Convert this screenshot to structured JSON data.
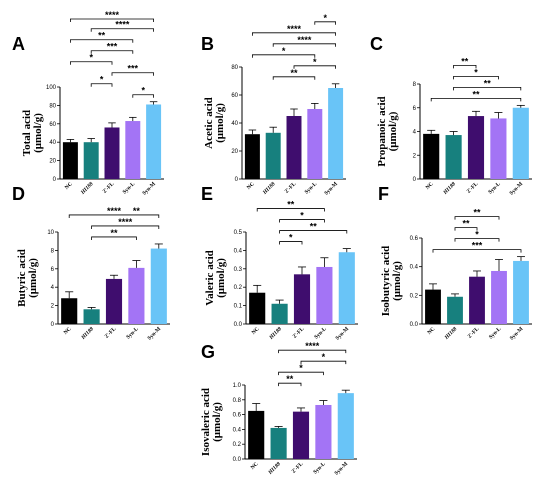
{
  "colors": {
    "NC": "#000000",
    "HI188": "#17807e",
    "2'-FL": "#3f0d6e",
    "Syn-L": "#a374f5",
    "Syn-M": "#69c4f7"
  },
  "chart_data": [
    {
      "panel": "A",
      "type": "bar",
      "ylabel_line1": "Total acid",
      "ylabel_line2": "(μmol/g)",
      "categories": [
        "NC",
        "HI188",
        "2'-FL",
        "Syn-L",
        "Syn-M"
      ],
      "values": [
        40,
        40,
        56,
        63,
        81
      ],
      "errors": [
        3,
        4,
        5,
        4,
        3
      ],
      "ylim": [
        0,
        100
      ],
      "yticks": [
        "0",
        "20",
        "40",
        "60",
        "80",
        "100"
      ],
      "brackets": [
        {
          "from": 0,
          "to": 4,
          "label": "****"
        },
        {
          "from": 1,
          "to": 4,
          "label": "****"
        },
        {
          "from": 0,
          "to": 3,
          "label": "**"
        },
        {
          "from": 1,
          "to": 3,
          "label": "***"
        },
        {
          "from": 0,
          "to": 2,
          "label": "*"
        },
        {
          "from": 2,
          "to": 4,
          "label": "***"
        },
        {
          "from": 1,
          "to": 2,
          "label": "*"
        },
        {
          "from": 3,
          "to": 4,
          "label": "*"
        }
      ]
    },
    {
      "panel": "B",
      "type": "bar",
      "ylabel_line1": "Acetic acid",
      "ylabel_line2": "(μmol/g)",
      "categories": [
        "NC",
        "HI188",
        "2'-FL",
        "Syn-L",
        "Syn-M"
      ],
      "values": [
        32,
        33,
        45,
        50,
        65
      ],
      "errors": [
        3,
        4,
        5,
        4,
        3
      ],
      "ylim": [
        0,
        80
      ],
      "yticks": [
        "0",
        "20",
        "40",
        "60",
        "80"
      ],
      "brackets": [
        {
          "from": 3,
          "to": 4,
          "label": "*"
        },
        {
          "from": 0,
          "to": 4,
          "label": "****"
        },
        {
          "from": 1,
          "to": 4,
          "label": "****"
        },
        {
          "from": 0,
          "to": 3,
          "label": "*"
        },
        {
          "from": 2,
          "to": 4,
          "label": "*"
        },
        {
          "from": 1,
          "to": 3,
          "label": "**"
        }
      ]
    },
    {
      "panel": "C",
      "type": "bar",
      "ylabel_line1": "Propanoic acid",
      "ylabel_line2": "(μmol/g)",
      "categories": [
        "NC",
        "HI188",
        "2'-FL",
        "Syn-L",
        "Syn-M"
      ],
      "values": [
        3.8,
        3.7,
        5.3,
        5.1,
        6.0
      ],
      "errors": [
        0.3,
        0.3,
        0.4,
        0.5,
        0.2
      ],
      "ylim": [
        0,
        8
      ],
      "yticks": [
        "0",
        "2",
        "4",
        "6",
        "8"
      ],
      "brackets": [
        {
          "from": 1,
          "to": 2,
          "label": "**"
        },
        {
          "from": 1,
          "to": 3,
          "label": "*"
        },
        {
          "from": 1,
          "to": 4,
          "label": "**"
        },
        {
          "from": 0,
          "to": 4,
          "label": "**"
        }
      ]
    },
    {
      "panel": "D",
      "type": "bar",
      "ylabel_line1": "Butyric acid",
      "ylabel_line2": "(μmol/g)",
      "categories": [
        "NC",
        "HI188",
        "2'-FL",
        "Syn-L",
        "Syn-M"
      ],
      "values": [
        2.8,
        1.6,
        4.9,
        6.1,
        8.2
      ],
      "errors": [
        0.7,
        0.2,
        0.4,
        0.8,
        0.5
      ],
      "ylim": [
        0,
        10
      ],
      "yticks": [
        "0",
        "2",
        "4",
        "6",
        "8",
        "10"
      ],
      "brackets": [
        {
          "from": 0,
          "to": 4,
          "label": "****"
        },
        {
          "from": 1,
          "to": 4,
          "label": "****"
        },
        {
          "from": 1,
          "to": 3,
          "label": "**"
        }
      ],
      "extra_labels": [
        {
          "over": 3,
          "label": "**"
        }
      ]
    },
    {
      "panel": "E",
      "type": "bar",
      "ylabel_line1": "Valeric acid",
      "ylabel_line2": "(μmol/g)",
      "categories": [
        "NC",
        "HI188",
        "2'-FL",
        "Syn-L",
        "Syn-M"
      ],
      "values": [
        0.17,
        0.11,
        0.27,
        0.31,
        0.39
      ],
      "errors": [
        0.04,
        0.02,
        0.04,
        0.05,
        0.02
      ],
      "ylim": [
        0,
        0.5
      ],
      "yticks": [
        "0.0",
        "0.1",
        "0.2",
        "0.3",
        "0.4",
        "0.5"
      ],
      "brackets": [
        {
          "from": 0,
          "to": 3,
          "label": "**"
        },
        {
          "from": 1,
          "to": 3,
          "label": "*"
        },
        {
          "from": 1,
          "to": 4,
          "label": "**"
        },
        {
          "from": 1,
          "to": 2,
          "label": "*"
        }
      ]
    },
    {
      "panel": "F",
      "type": "bar",
      "ylabel_line1": "Isobutyric acid",
      "ylabel_line2": "(μmol/g)",
      "categories": [
        "NC",
        "HI188",
        "2'-FL",
        "Syn-L",
        "Syn-M"
      ],
      "values": [
        0.24,
        0.19,
        0.33,
        0.37,
        0.44
      ],
      "errors": [
        0.04,
        0.02,
        0.04,
        0.08,
        0.03
      ],
      "ylim": [
        0,
        0.6
      ],
      "yticks": [
        "0.0",
        "0.2",
        "0.4",
        "0.6"
      ],
      "brackets": [
        {
          "from": 1,
          "to": 3,
          "label": "**"
        },
        {
          "from": 1,
          "to": 2,
          "label": "**"
        },
        {
          "from": 1,
          "to": 3,
          "label": "*"
        },
        {
          "from": 0,
          "to": 4,
          "label": "***"
        }
      ]
    },
    {
      "panel": "G",
      "type": "bar",
      "ylabel_line1": "Isovaleric acid",
      "ylabel_line2": "(μmol/g)",
      "categories": [
        "NC",
        "HI188",
        "2'-FL",
        "Syn-L",
        "Syn-M"
      ],
      "values": [
        0.65,
        0.42,
        0.64,
        0.73,
        0.89
      ],
      "errors": [
        0.1,
        0.02,
        0.05,
        0.06,
        0.04
      ],
      "ylim": [
        0,
        1.0
      ],
      "yticks": [
        "0.0",
        "0.2",
        "0.4",
        "0.6",
        "0.8",
        "1.0"
      ],
      "brackets": [
        {
          "from": 1,
          "to": 4,
          "label": "****"
        },
        {
          "from": 2,
          "to": 4,
          "label": "*"
        },
        {
          "from": 1,
          "to": 3,
          "label": "*"
        },
        {
          "from": 1,
          "to": 2,
          "label": "**"
        }
      ]
    }
  ]
}
